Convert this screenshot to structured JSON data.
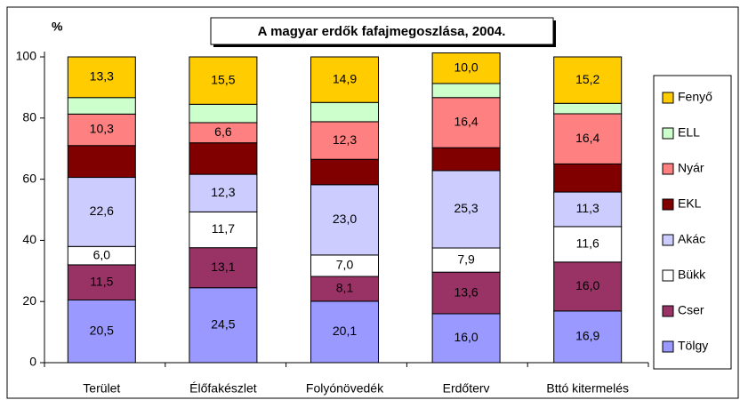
{
  "chart_data": {
    "type": "stacked-bar",
    "title": "A magyar erdők fafajmegoszlása, 2004.",
    "y_label": "%",
    "categories": [
      "Terület",
      "Élőfakészlet",
      "Folyónövedék",
      "Erdőterv",
      "Bttó kitermelés"
    ],
    "ylim": [
      0,
      100
    ],
    "yticks": [
      0,
      20,
      40,
      60,
      80,
      100
    ],
    "series": [
      {
        "name": "Tölgy",
        "color": "#9999ff",
        "values": [
          20.5,
          24.5,
          20.1,
          16.0,
          16.9
        ],
        "value_labels": [
          "20,5",
          "24,5",
          "20,1",
          "16,0",
          "16,9"
        ]
      },
      {
        "name": "Cser",
        "color": "#993366",
        "values": [
          11.5,
          13.1,
          8.1,
          13.6,
          16.0
        ],
        "value_labels": [
          "11,5",
          "13,1",
          "8,1",
          "13,6",
          "16,0"
        ]
      },
      {
        "name": "Bükk",
        "color": "#ffffff",
        "values": [
          6.0,
          11.7,
          7.0,
          7.9,
          11.6
        ],
        "value_labels": [
          "6,0",
          "11,7",
          "7,0",
          "7,9",
          "11,6"
        ]
      },
      {
        "name": "Akác",
        "color": "#ccccff",
        "values": [
          22.6,
          12.3,
          23.0,
          25.3,
          11.3
        ],
        "value_labels": [
          "22,6",
          "12,3",
          "23,0",
          "25,3",
          "11,3"
        ]
      },
      {
        "name": "EKL",
        "color": "#800000",
        "values": [
          10.4,
          10.3,
          8.3,
          7.5,
          9.2
        ]
      },
      {
        "name": "Nyár",
        "color": "#ff8080",
        "values": [
          10.3,
          6.6,
          12.3,
          16.4,
          16.4
        ],
        "value_labels": [
          "10,3",
          "6,6",
          "12,3",
          "16,4",
          "16,4"
        ]
      },
      {
        "name": "ELL",
        "color": "#ccffcc",
        "values": [
          5.4,
          6.0,
          6.3,
          4.6,
          3.4
        ]
      },
      {
        "name": "Fenyő",
        "color": "#ffcc00",
        "values": [
          13.3,
          15.5,
          14.9,
          10.0,
          15.2
        ],
        "value_labels": [
          "13,3",
          "15,5",
          "14,9",
          "10,0",
          "15,2"
        ]
      }
    ]
  }
}
